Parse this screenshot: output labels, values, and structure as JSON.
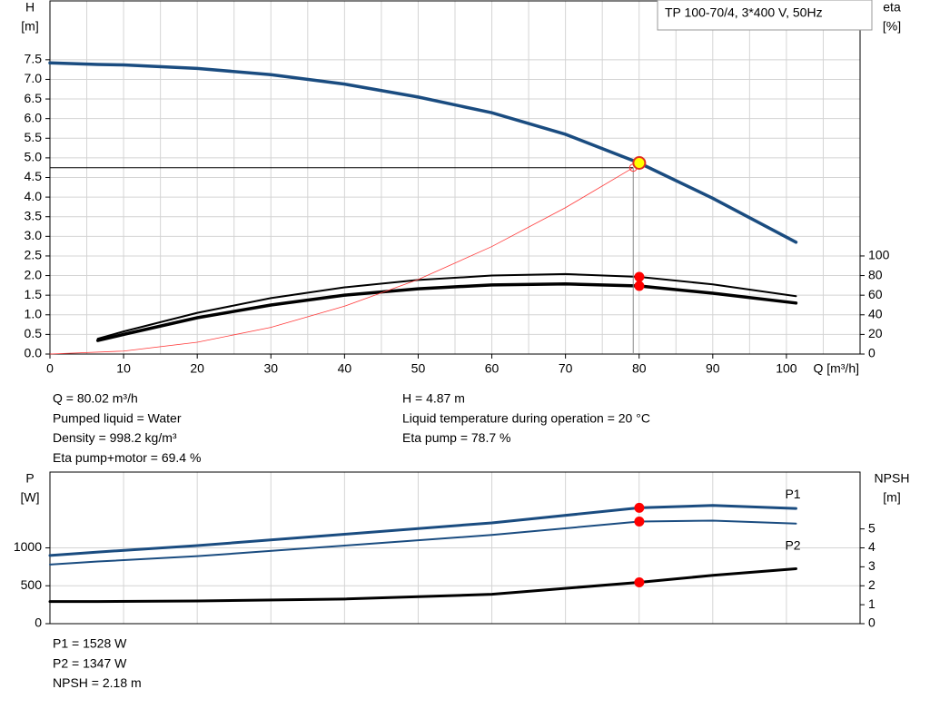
{
  "chart_data": [
    {
      "type": "line",
      "title": "TP 100-70/4, 3*400 V, 50Hz",
      "x_label": "Q [m³/h]",
      "y_label": "H",
      "y_unit": "[m]",
      "y2_label": "eta",
      "y2_unit": "[%]",
      "xlim": [
        0,
        110
      ],
      "ylim": [
        0,
        9
      ],
      "y2lim": [
        0,
        360
      ],
      "xticks": [
        0,
        10,
        20,
        30,
        40,
        50,
        60,
        70,
        80,
        90,
        100
      ],
      "xgrid": [
        5,
        15,
        25,
        35,
        45,
        55,
        65,
        75,
        85,
        95,
        105
      ],
      "yticks": [
        {
          "value": 0,
          "label": "0.0"
        },
        {
          "value": 0.5,
          "label": "0.5"
        },
        {
          "value": 1,
          "label": "1.0"
        },
        {
          "value": 1.5,
          "label": "1.5"
        },
        {
          "value": 2,
          "label": "2.0"
        },
        {
          "value": 2.5,
          "label": "2.5"
        },
        {
          "value": 3,
          "label": "3.0"
        },
        {
          "value": 3.5,
          "label": "3.5"
        },
        {
          "value": 4,
          "label": "4.0"
        },
        {
          "value": 4.5,
          "label": "4.5"
        },
        {
          "value": 5,
          "label": "5.0"
        },
        {
          "value": 5.5,
          "label": "5.5"
        },
        {
          "value": 6,
          "label": "6.0"
        },
        {
          "value": 6.5,
          "label": "6.5"
        },
        {
          "value": 7,
          "label": "7.0"
        },
        {
          "value": 7.5,
          "label": "7.5"
        }
      ],
      "y2ticks": [
        0,
        20,
        40,
        60,
        80,
        100
      ],
      "grid": true,
      "series": [
        {
          "color": "#1a4c80",
          "width": 3.5,
          "x": [
            0,
            6.5,
            10,
            20,
            30,
            40,
            50,
            60,
            70,
            80,
            90,
            101.3
          ],
          "values": [
            7.42,
            7.38,
            7.37,
            7.28,
            7.12,
            6.88,
            6.55,
            6.15,
            5.6,
            4.87,
            3.97,
            2.85
          ]
        },
        {
          "color": "#000000",
          "width": 2,
          "axis": "y2",
          "x": [
            6.5,
            10,
            20,
            30,
            40,
            50,
            60,
            70,
            80,
            90,
            101.3
          ],
          "values": [
            15.6,
            23,
            42,
            57,
            68,
            75.5,
            80,
            81.5,
            78.7,
            71,
            59
          ]
        },
        {
          "color": "#000000",
          "width": 3.5,
          "axis": "y2",
          "x": [
            6.5,
            10,
            20,
            30,
            40,
            50,
            60,
            70,
            80,
            90,
            101.3
          ],
          "values": [
            13.8,
            20,
            37,
            50,
            60,
            66.5,
            70.5,
            71.5,
            69.4,
            62,
            52
          ]
        },
        {
          "color": "#ff3b3b",
          "width": 0.8,
          "x": [
            0,
            10,
            20,
            30,
            40,
            50,
            60,
            70,
            79.2
          ],
          "values": [
            0,
            0.076,
            0.3,
            0.68,
            1.22,
            1.9,
            2.74,
            3.73,
            4.75
          ]
        }
      ],
      "points": [
        {
          "x": 80.02,
          "y": 4.87,
          "color": "#ffff00"
        },
        {
          "x": 80.02,
          "y": 78.7,
          "axis": "y2",
          "color": "#ff0000"
        },
        {
          "x": 80.02,
          "y": 69.4,
          "axis": "y2",
          "color": "#ff0000"
        }
      ],
      "annotations": [
        [
          "Q = 80.02 m³/h",
          "Pumped liquid = Water",
          "Density = 998.2 kg/m³",
          "Eta pump+motor = 69.4 %"
        ],
        [
          "H = 4.87 m",
          "Liquid temperature during operation = 20 °C",
          "Eta pump = 78.7 %"
        ]
      ]
    },
    {
      "type": "line",
      "y_label": "P",
      "y_unit": "[W]",
      "y2_label": "NPSH",
      "y2_unit": "[m]",
      "xlim": [
        0,
        110
      ],
      "ylim": [
        0,
        2000
      ],
      "y2lim": [
        0,
        8
      ],
      "xgrid": [
        0,
        10,
        20,
        30,
        40,
        50,
        60,
        70,
        80,
        90,
        100
      ],
      "yticks": [
        0,
        500,
        1000
      ],
      "y2ticks": [
        0,
        1,
        2,
        3,
        4,
        5
      ],
      "grid": true,
      "series": [
        {
          "name": "P1",
          "color": "#1a4c80",
          "width": 3,
          "x": [
            0,
            6.5,
            20,
            40,
            60,
            80,
            90,
            101.3
          ],
          "values": [
            900,
            945,
            1030,
            1180,
            1330,
            1528,
            1560,
            1520
          ]
        },
        {
          "name": "P2",
          "color": "#1a4c80",
          "width": 2,
          "x": [
            0,
            6.5,
            20,
            40,
            60,
            80,
            90,
            101.3
          ],
          "values": [
            780,
            820,
            890,
            1030,
            1170,
            1347,
            1360,
            1320
          ]
        },
        {
          "color": "#000000",
          "width": 3,
          "axis": "y2",
          "x": [
            0,
            6.5,
            20,
            40,
            60,
            80,
            90,
            101.3
          ],
          "values": [
            1.17,
            1.17,
            1.2,
            1.3,
            1.55,
            2.18,
            2.55,
            2.9
          ]
        }
      ],
      "points": [
        {
          "x": 80.02,
          "y": 1528,
          "color": "#ff0000"
        },
        {
          "x": 80.02,
          "y": 1347,
          "color": "#ff0000"
        },
        {
          "x": 80.02,
          "y": 2.18,
          "axis": "y2",
          "color": "#ff0000"
        }
      ],
      "annotations": [
        [
          "P1 = 1528 W",
          "P2 = 1347 W",
          "NPSH = 2.18 m"
        ]
      ]
    }
  ]
}
